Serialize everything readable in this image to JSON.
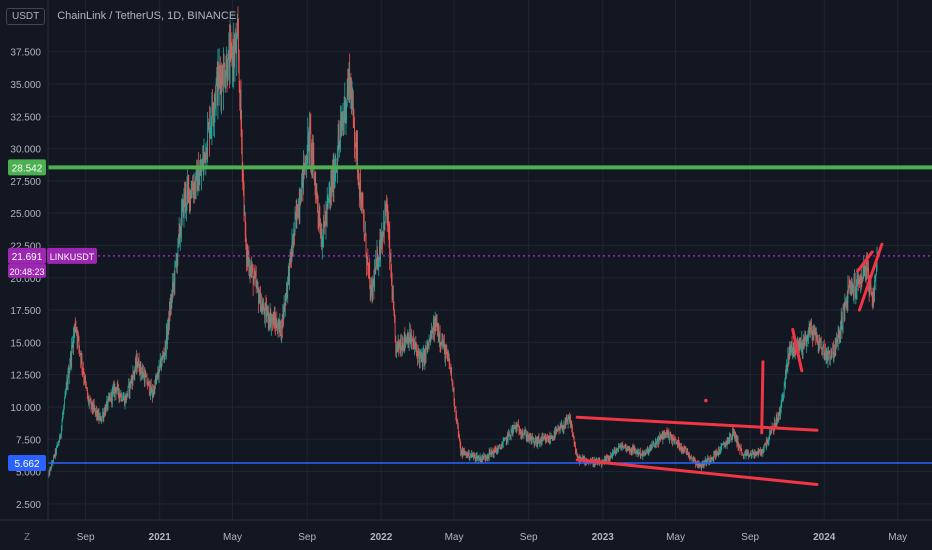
{
  "header": {
    "unit_label": "USDT",
    "symbol_title": "ChainLink / TetherUS, 1D, BINANCE"
  },
  "zoom_label": "Z",
  "colors": {
    "background": "#131722",
    "grid": "#1f2431",
    "axis_text": "#b2b5be",
    "up": "#26a69a",
    "down": "#ef5350",
    "green_line": "#4caf50",
    "blue_line": "#2962ff",
    "price_line": "#9c27b0",
    "drawing": "#f23645"
  },
  "chart_data": {
    "type": "candlestick",
    "title": "ChainLink / TetherUS, 1D, BINANCE",
    "unit": "USDT",
    "ylim": [
      1.25,
      41.5
    ],
    "y_ticks": [
      "2.500",
      "5.000",
      "7.500",
      "10.000",
      "12.500",
      "15.000",
      "17.500",
      "20.000",
      "22.500",
      "25.000",
      "27.500",
      "30.000",
      "32.500",
      "35.000",
      "37.500"
    ],
    "x_ticks": [
      "Sep",
      "2021",
      "May",
      "Sep",
      "2022",
      "May",
      "Sep",
      "2023",
      "May",
      "Sep",
      "2024",
      "May"
    ],
    "x_range": [
      "2020-07-01",
      "2024-06-15"
    ],
    "price_path": [
      [
        "2020-07-01",
        4.6
      ],
      [
        "2020-07-20",
        7.5
      ],
      [
        "2020-08-15",
        16.5
      ],
      [
        "2020-09-05",
        10.5
      ],
      [
        "2020-09-25",
        9.0
      ],
      [
        "2020-10-20",
        11.5
      ],
      [
        "2020-11-05",
        10.5
      ],
      [
        "2020-11-25",
        13.5
      ],
      [
        "2020-12-20",
        11.0
      ],
      [
        "2021-01-10",
        14.5
      ],
      [
        "2021-02-10",
        26.0
      ],
      [
        "2021-03-10",
        28.0
      ],
      [
        "2021-04-05",
        35.0
      ],
      [
        "2021-05-10",
        38.0
      ],
      [
        "2021-05-23",
        22.0
      ],
      [
        "2021-06-20",
        17.5
      ],
      [
        "2021-07-20",
        16.0
      ],
      [
        "2021-08-15",
        25.0
      ],
      [
        "2021-09-05",
        31.0
      ],
      [
        "2021-09-25",
        23.0
      ],
      [
        "2021-10-15",
        28.0
      ],
      [
        "2021-11-10",
        35.5
      ],
      [
        "2021-12-01",
        25.0
      ],
      [
        "2021-12-15",
        18.5
      ],
      [
        "2022-01-10",
        25.5
      ],
      [
        "2022-01-25",
        14.5
      ],
      [
        "2022-02-15",
        15.5
      ],
      [
        "2022-03-10",
        13.5
      ],
      [
        "2022-04-01",
        16.5
      ],
      [
        "2022-04-25",
        13.0
      ],
      [
        "2022-05-12",
        6.5
      ],
      [
        "2022-06-15",
        6.0
      ],
      [
        "2022-07-15",
        6.8
      ],
      [
        "2022-08-10",
        8.5
      ],
      [
        "2022-09-10",
        7.3
      ],
      [
        "2022-10-05",
        7.5
      ],
      [
        "2022-11-08",
        9.0
      ],
      [
        "2022-11-20",
        6.0
      ],
      [
        "2022-12-31",
        5.6
      ],
      [
        "2023-02-01",
        7.0
      ],
      [
        "2023-03-10",
        6.3
      ],
      [
        "2023-04-15",
        8.0
      ],
      [
        "2023-05-20",
        6.5
      ],
      [
        "2023-06-10",
        5.4
      ],
      [
        "2023-07-10",
        6.5
      ],
      [
        "2023-08-05",
        8.0
      ],
      [
        "2023-08-20",
        6.2
      ],
      [
        "2023-09-20",
        6.5
      ],
      [
        "2023-10-20",
        9.5
      ],
      [
        "2023-11-05",
        14.5
      ],
      [
        "2023-11-25",
        14.8
      ],
      [
        "2023-12-10",
        16.0
      ],
      [
        "2024-01-05",
        14.0
      ],
      [
        "2024-01-20",
        14.5
      ],
      [
        "2024-02-10",
        19.0
      ],
      [
        "2024-02-25",
        19.5
      ],
      [
        "2024-03-10",
        21.0
      ],
      [
        "2024-03-20",
        17.8
      ],
      [
        "2024-03-28",
        21.691
      ]
    ],
    "horizontal_lines": [
      {
        "label": "28.542",
        "value": 28.542,
        "color": "#4caf50"
      },
      {
        "label": "21.691",
        "value": 21.691,
        "color": "#9c27b0",
        "style": "dotted"
      },
      {
        "label": "5.662",
        "value": 5.662,
        "color": "#2962ff"
      }
    ],
    "price_tag": {
      "symbol": "LINKUSDT",
      "value": "21.691",
      "countdown": "20:48:23"
    },
    "drawings": [
      {
        "from": [
          "2022-11-20",
          9.2
        ],
        "to": [
          "2023-12-20",
          8.2
        ]
      },
      {
        "from": [
          "2022-11-20",
          5.9
        ],
        "to": [
          "2023-12-20",
          4.0
        ]
      },
      {
        "from": [
          "2023-09-20",
          8.0
        ],
        "to": [
          "2023-09-22",
          13.5
        ]
      },
      {
        "from": [
          "2023-11-10",
          16.0
        ],
        "to": [
          "2023-11-25",
          12.8
        ]
      },
      {
        "from": [
          "2024-02-25",
          20.5
        ],
        "to": [
          "2024-03-20",
          22.0
        ]
      },
      {
        "from": [
          "2024-02-28",
          17.5
        ],
        "to": [
          "2024-04-05",
          22.6
        ]
      },
      {
        "point": [
          "2023-06-20",
          10.5
        ]
      }
    ]
  }
}
